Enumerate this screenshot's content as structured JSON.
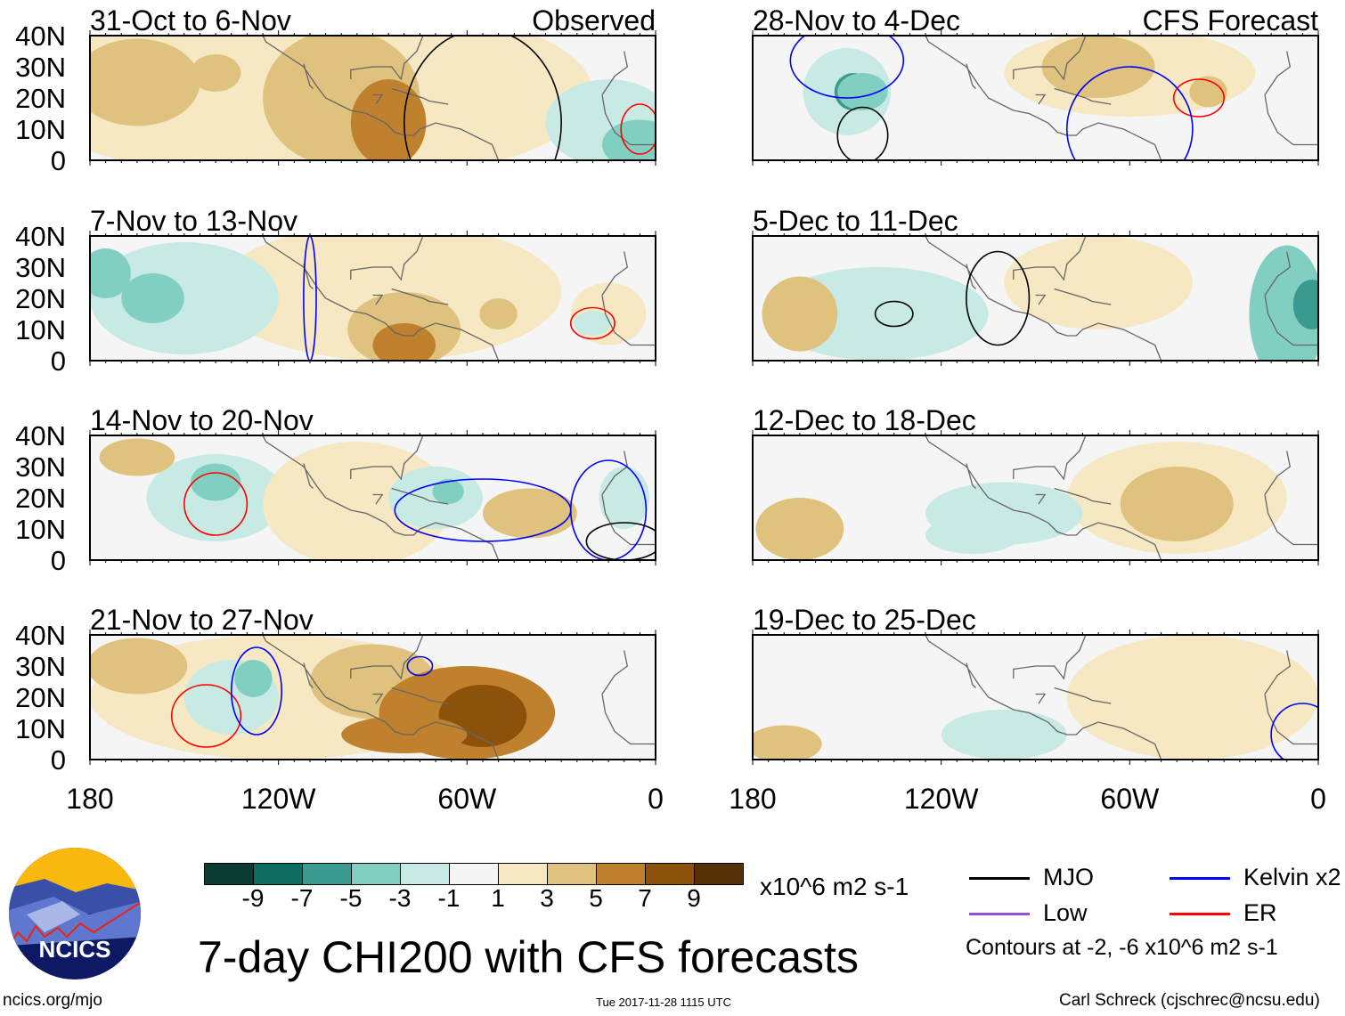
{
  "title": "7-day CHI200 with CFS forecasts",
  "units": "x10^6 m2 s-1",
  "contour_note": "Contours at -2, -6 x10^6 m2 s-1",
  "url": "ncics.org/mjo",
  "timestamp": "Tue 2017-11-28 1115 UTC",
  "credit": "Carl Schreck (cjschrec@ncsu.edu)",
  "logo_text": "NCICS",
  "observed_label": "Observed",
  "forecast_label": "CFS Forecast",
  "lat_ticks": [
    "40N",
    "30N",
    "20N",
    "10N",
    "0"
  ],
  "lon_ticks": [
    "180",
    "120W",
    "60W",
    "0"
  ],
  "colorbar": {
    "colors": [
      "#0b3b33",
      "#0f6a60",
      "#3a9a8f",
      "#80cfc1",
      "#c7eae5",
      "#f5f5f5",
      "#f6e8c3",
      "#dfc27d",
      "#bf812d",
      "#8c510a",
      "#543005"
    ],
    "labels": [
      "-9",
      "-7",
      "-5",
      "-3",
      "-1",
      "1",
      "3",
      "5",
      "7",
      "9"
    ]
  },
  "legend": [
    {
      "label": "MJO",
      "color": "#000000"
    },
    {
      "label": "Kelvin x2",
      "color": "#0000ff"
    },
    {
      "label": "Low",
      "color": "#9b4fd9"
    },
    {
      "label": "ER",
      "color": "#ff0000"
    }
  ],
  "panels": [
    {
      "title": "31-Oct to 6-Nov",
      "blobs": [
        [
          -110,
          22,
          90,
          30,
          6
        ],
        [
          -165,
          25,
          20,
          14,
          7
        ],
        [
          -100,
          20,
          25,
          22,
          7
        ],
        [
          -85,
          12,
          12,
          14,
          8
        ],
        [
          -140,
          28,
          8,
          6,
          7
        ],
        [
          -15,
          12,
          20,
          14,
          4
        ],
        [
          -5,
          5,
          12,
          8,
          3
        ]
      ],
      "contours": [
        [
          -55,
          12,
          25,
          30,
          "#000"
        ],
        [
          -5,
          10,
          6,
          8,
          "#f00"
        ]
      ]
    },
    {
      "title": "28-Nov to 4-Dec",
      "blobs": [
        [
          -150,
          22,
          14,
          14,
          4
        ],
        [
          -148,
          22,
          6,
          6,
          2
        ],
        [
          -60,
          28,
          40,
          14,
          6
        ],
        [
          -70,
          30,
          18,
          10,
          7
        ],
        [
          -35,
          22,
          6,
          5,
          7
        ],
        [
          -145,
          22,
          8,
          6,
          3
        ]
      ],
      "contours": [
        [
          -145,
          8,
          8,
          9,
          "#000"
        ],
        [
          -150,
          32,
          18,
          12,
          "#00f"
        ],
        [
          -38,
          20,
          8,
          6,
          "#f00"
        ],
        [
          -60,
          10,
          20,
          20,
          "#00f"
        ]
      ]
    },
    {
      "title": "7-Nov to 13-Nov",
      "blobs": [
        [
          -85,
          22,
          55,
          22,
          6
        ],
        [
          -80,
          10,
          18,
          12,
          7
        ],
        [
          -80,
          5,
          10,
          7,
          8
        ],
        [
          -150,
          20,
          30,
          18,
          4
        ],
        [
          -160,
          20,
          10,
          8,
          3
        ],
        [
          -175,
          28,
          8,
          8,
          3
        ],
        [
          -50,
          15,
          6,
          5,
          7
        ],
        [
          -15,
          15,
          12,
          10,
          6
        ],
        [
          -20,
          12,
          6,
          4,
          4
        ]
      ],
      "contours": [
        [
          -20,
          12,
          7,
          5,
          "#f00"
        ],
        [
          -110,
          20,
          2,
          20,
          "#00f"
        ]
      ]
    },
    {
      "title": "5-Dec to 11-Dec",
      "blobs": [
        [
          -140,
          15,
          35,
          15,
          4
        ],
        [
          -70,
          25,
          30,
          15,
          6
        ],
        [
          -165,
          15,
          12,
          12,
          7
        ],
        [
          -10,
          15,
          12,
          22,
          3
        ],
        [
          -2,
          18,
          6,
          8,
          2
        ]
      ],
      "contours": [
        [
          -135,
          15,
          6,
          4,
          "#000"
        ],
        [
          -102,
          20,
          10,
          15,
          "#000"
        ]
      ]
    },
    {
      "title": "14-Nov to 20-Nov",
      "blobs": [
        [
          -140,
          20,
          22,
          14,
          4
        ],
        [
          -140,
          25,
          8,
          6,
          3
        ],
        [
          -95,
          18,
          30,
          20,
          6
        ],
        [
          -70,
          20,
          15,
          10,
          4
        ],
        [
          -66,
          22,
          5,
          4,
          3
        ],
        [
          -40,
          15,
          15,
          8,
          7
        ],
        [
          -165,
          33,
          12,
          6,
          7
        ],
        [
          -10,
          20,
          8,
          10,
          4
        ]
      ],
      "contours": [
        [
          -140,
          18,
          10,
          10,
          "#f00"
        ],
        [
          -55,
          16,
          28,
          10,
          "#00f"
        ],
        [
          -15,
          16,
          12,
          16,
          "#00f"
        ],
        [
          -10,
          6,
          12,
          6,
          "#000"
        ]
      ]
    },
    {
      "title": "12-Dec to 18-Dec",
      "blobs": [
        [
          -45,
          20,
          35,
          18,
          6
        ],
        [
          -45,
          18,
          18,
          12,
          7
        ],
        [
          -165,
          10,
          14,
          10,
          7
        ],
        [
          -100,
          15,
          25,
          10,
          4
        ],
        [
          -110,
          8,
          15,
          6,
          4
        ]
      ],
      "contours": []
    },
    {
      "title": "21-Nov to 27-Nov",
      "blobs": [
        [
          -120,
          20,
          60,
          20,
          6
        ],
        [
          -165,
          30,
          16,
          9,
          7
        ],
        [
          -90,
          25,
          20,
          12,
          7
        ],
        [
          -60,
          15,
          28,
          15,
          8
        ],
        [
          -55,
          14,
          14,
          10,
          9
        ],
        [
          -80,
          8,
          20,
          6,
          8
        ],
        [
          -135,
          20,
          15,
          12,
          4
        ],
        [
          -128,
          26,
          6,
          6,
          3
        ]
      ],
      "contours": [
        [
          -143,
          14,
          11,
          10,
          "#f00"
        ],
        [
          -127,
          22,
          8,
          14,
          "#00f"
        ],
        [
          -75,
          30,
          4,
          3,
          "#00f"
        ]
      ]
    },
    {
      "title": "19-Dec to 25-Dec",
      "blobs": [
        [
          -40,
          20,
          40,
          20,
          6
        ],
        [
          -170,
          5,
          12,
          6,
          7
        ],
        [
          -100,
          8,
          20,
          8,
          4
        ]
      ],
      "contours": [
        [
          -5,
          8,
          10,
          10,
          "#00f"
        ]
      ]
    }
  ]
}
